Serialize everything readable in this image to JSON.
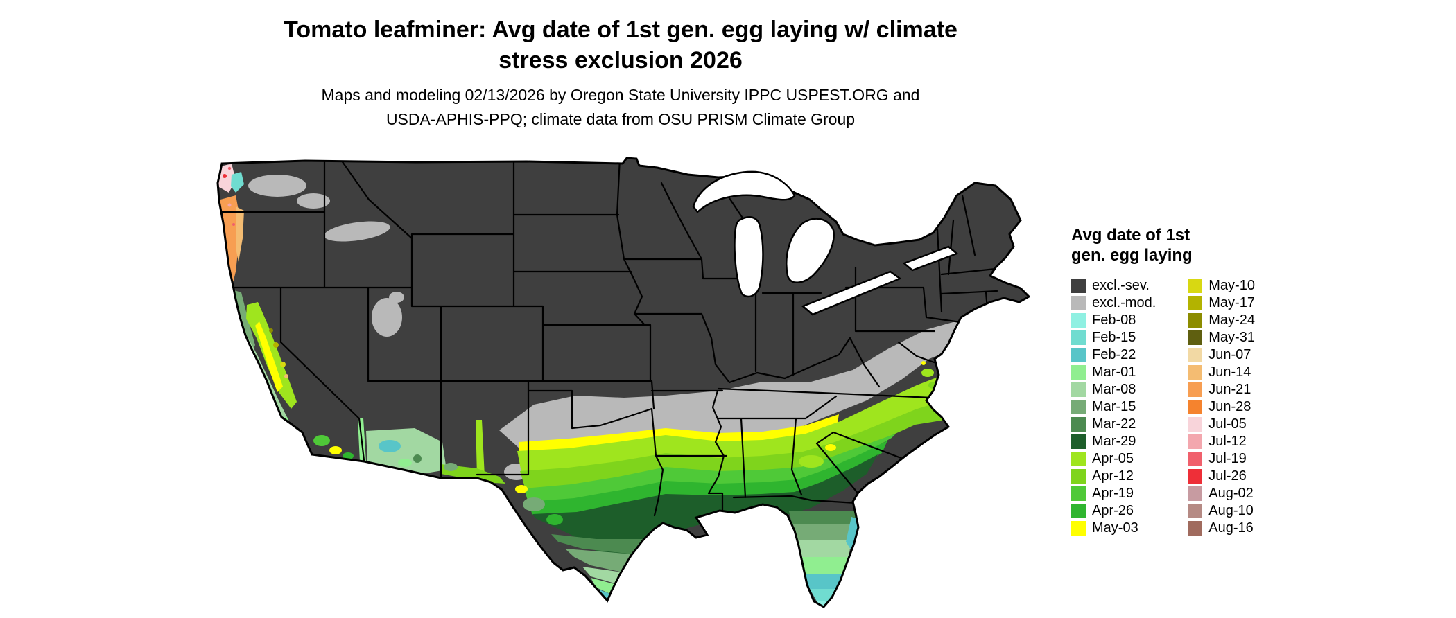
{
  "page": {
    "background": "#ffffff"
  },
  "title": {
    "line1": "Tomato leafminer: Avg date of 1st gen. egg laying w/ climate",
    "line2": "stress exclusion 2026"
  },
  "subtitle": {
    "line1": "Maps and modeling 02/13/2026 by Oregon State University IPPC USPEST.ORG and",
    "line2": "USDA-APHIS-PPQ; climate data from OSU PRISM Climate Group"
  },
  "legend": {
    "title_line1": "Avg date of 1st",
    "title_line2": "gen. egg laying",
    "column1": [
      {
        "label": "excl.-sev.",
        "color": "#3f3f3f"
      },
      {
        "label": "excl.-mod.",
        "color": "#b9b9b9"
      },
      {
        "label": "Feb-08",
        "color": "#8ff0e2"
      },
      {
        "label": "Feb-15",
        "color": "#70dcd0"
      },
      {
        "label": "Feb-22",
        "color": "#58c5c8"
      },
      {
        "label": "Mar-01",
        "color": "#90ee90"
      },
      {
        "label": "Mar-08",
        "color": "#a2d8a2"
      },
      {
        "label": "Mar-15",
        "color": "#76ab76"
      },
      {
        "label": "Mar-22",
        "color": "#4c8a50"
      },
      {
        "label": "Mar-29",
        "color": "#1d5e2a"
      },
      {
        "label": "Apr-05",
        "color": "#9fe51e"
      },
      {
        "label": "Apr-12",
        "color": "#7fd41c"
      },
      {
        "label": "Apr-19",
        "color": "#4fc938"
      },
      {
        "label": "Apr-26",
        "color": "#2fb52f"
      },
      {
        "label": "May-03",
        "color": "#ffff00"
      }
    ],
    "column2": [
      {
        "label": "May-10",
        "color": "#d8d812"
      },
      {
        "label": "May-17",
        "color": "#b3b300"
      },
      {
        "label": "May-24",
        "color": "#8c8c00"
      },
      {
        "label": "May-31",
        "color": "#5f5f10"
      },
      {
        "label": "Jun-07",
        "color": "#f2d9a4"
      },
      {
        "label": "Jun-14",
        "color": "#f4bc72"
      },
      {
        "label": "Jun-21",
        "color": "#f79e52"
      },
      {
        "label": "Jun-28",
        "color": "#f5832e"
      },
      {
        "label": "Jul-05",
        "color": "#f8d4da"
      },
      {
        "label": "Jul-12",
        "color": "#f3a7ae"
      },
      {
        "label": "Jul-19",
        "color": "#f0606c"
      },
      {
        "label": "Jul-26",
        "color": "#ee2f38"
      },
      {
        "label": "Aug-02",
        "color": "#c79ba1"
      },
      {
        "label": "Aug-10",
        "color": "#b58a84"
      },
      {
        "label": "Aug-16",
        "color": "#a06b5e"
      }
    ]
  },
  "map": {
    "description": "Continental United States choropleth of average date of first generation egg laying",
    "outline_color": "#000000",
    "water_color": "#ffffff",
    "zones": [
      {
        "color_class": "excl.-sev.",
        "area": "Most of the northern and interior United States"
      },
      {
        "color_class": "excl.-mod.",
        "area": "Band through Oklahoma, Arkansas, Tennessee and southern Appalachians; patches in eastern Washington, Idaho Snake River plain, Utah and mid-Atlantic"
      },
      {
        "color_class": "Apr-05 to May-03 greens and yellow",
        "area": "Southern Plains, Gulf states, Southeast coastal plain, California Central Valley"
      },
      {
        "color_class": "Feb-08 to Mar-29 teals and greens",
        "area": "South Texas, peninsular Florida, coastal California, southern Arizona and New Mexico"
      },
      {
        "color_class": "Jun-07 to Aug-16 oranges, pinks, reds",
        "area": "Oregon and Washington coastal strip"
      }
    ]
  }
}
